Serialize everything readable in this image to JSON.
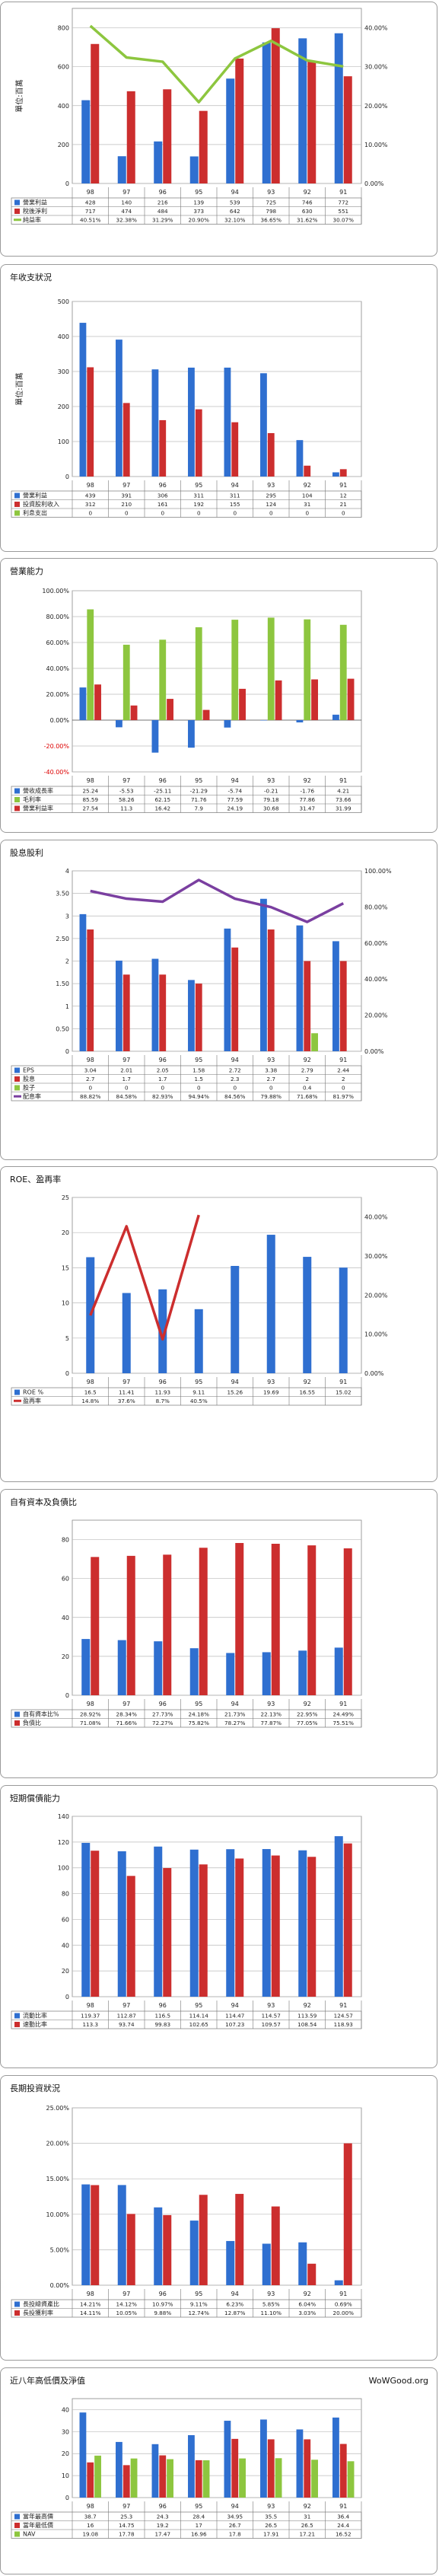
{
  "site": "WoWGood.org",
  "years": [
    "98",
    "97",
    "96",
    "95",
    "94",
    "93",
    "92",
    "91"
  ],
  "colors": {
    "blue": "#2f6fd0",
    "red": "#cc2e2e",
    "green": "#8dc63f",
    "purple": "#7a3fa0",
    "green_line": "#8dc63f"
  },
  "chart_data": [
    {
      "id": "profit",
      "type": "bar",
      "title": "",
      "ylabel": "單位:百萬",
      "ylim": [
        0,
        900
      ],
      "y2lim": [
        0,
        45
      ],
      "y2suffix": "%",
      "series": [
        {
          "name": "營業利益",
          "axis": "left",
          "values": [
            428,
            140,
            216,
            139,
            539,
            725,
            746,
            772
          ],
          "color": "blue"
        },
        {
          "name": "稅後淨利",
          "axis": "left",
          "values": [
            717,
            474,
            484,
            373,
            642,
            798,
            630,
            551
          ],
          "color": "red"
        },
        {
          "name": "純益率",
          "axis": "right",
          "kind": "line",
          "values": [
            40.51,
            32.38,
            31.29,
            20.9,
            32.1,
            36.65,
            31.62,
            30.07
          ],
          "color": "green_line",
          "display": [
            "40.51%",
            "32.38%",
            "31.29%",
            "20.90%",
            "32.10%",
            "36.65%",
            "31.62%",
            "30.07%"
          ]
        }
      ]
    },
    {
      "id": "annual",
      "type": "bar",
      "title": "年收支狀況",
      "ylabel": "單位:百萬",
      "ylim": [
        0,
        500
      ],
      "series": [
        {
          "name": "營業利益",
          "values": [
            439,
            391,
            306,
            311,
            311,
            295,
            104,
            12
          ],
          "color": "blue"
        },
        {
          "name": "投資股利收入",
          "values": [
            312,
            210,
            161,
            192,
            155,
            124,
            31,
            21
          ],
          "color": "red"
        },
        {
          "name": "利息支出",
          "values": [
            0,
            0,
            0,
            0,
            0,
            0,
            0,
            0
          ],
          "color": "green"
        }
      ]
    },
    {
      "id": "ability",
      "type": "bar",
      "title": "營業能力",
      "ylabel": "",
      "ylim": [
        -40,
        100
      ],
      "ysuffix": "%",
      "series": [
        {
          "name": "營收成長率",
          "values": [
            25.24,
            -5.53,
            -25.11,
            -21.29,
            -5.74,
            -0.21,
            -1.76,
            4.21
          ],
          "color": "blue"
        },
        {
          "name": "毛利率",
          "values": [
            85.59,
            58.26,
            62.15,
            71.76,
            77.59,
            79.18,
            77.86,
            73.66
          ],
          "color": "green"
        },
        {
          "name": "營業利益率",
          "values": [
            27.54,
            11.3,
            16.42,
            7.9,
            24.19,
            30.68,
            31.47,
            31.99
          ],
          "color": "red"
        }
      ]
    },
    {
      "id": "dividend",
      "type": "bar",
      "title": "股息股利",
      "ylabel": "",
      "ylim": [
        0,
        4
      ],
      "y2lim": [
        0,
        100
      ],
      "y2suffix": "%",
      "series": [
        {
          "name": "EPS",
          "axis": "left",
          "values": [
            3.04,
            2.01,
            2.05,
            1.58,
            2.72,
            3.38,
            2.79,
            2.44
          ],
          "color": "blue"
        },
        {
          "name": "股息",
          "axis": "left",
          "values": [
            2.7,
            1.7,
            1.7,
            1.5,
            2.3,
            2.7,
            2,
            2
          ],
          "color": "red"
        },
        {
          "name": "股子",
          "axis": "left",
          "values": [
            0,
            0,
            0,
            0,
            0,
            0,
            0.4,
            0
          ],
          "color": "green"
        },
        {
          "name": "配息率",
          "axis": "right",
          "kind": "line",
          "values": [
            88.82,
            84.58,
            82.93,
            94.94,
            84.56,
            79.88,
            71.68,
            81.97
          ],
          "color": "purple",
          "display": [
            "88.82%",
            "84.58%",
            "82.93%",
            "94.94%",
            "84.56%",
            "79.88%",
            "71.68%",
            "81.97%"
          ]
        }
      ]
    },
    {
      "id": "roe",
      "type": "bar",
      "title": "ROE、盈再率",
      "ylabel": "",
      "ylim": [
        0,
        25
      ],
      "y2lim": [
        0,
        45
      ],
      "y2suffix": "%",
      "series": [
        {
          "name": "ROE %",
          "axis": "left",
          "values": [
            16.5,
            11.41,
            11.93,
            9.11,
            15.26,
            19.69,
            16.55,
            15.02
          ],
          "color": "blue"
        },
        {
          "name": "盈再率",
          "axis": "right",
          "kind": "line",
          "values": [
            14.8,
            37.6,
            8.7,
            40.5,
            null,
            null,
            null,
            null
          ],
          "color": "red",
          "display": [
            "14.8%",
            "37.6%",
            "8.7%",
            "40.5%",
            "",
            "",
            "",
            ""
          ]
        }
      ]
    },
    {
      "id": "equity",
      "type": "bar",
      "title": "自有資本及負債比",
      "ylabel": "",
      "ylim": [
        0,
        90
      ],
      "series": [
        {
          "name": "自有資本比%",
          "values": [
            28.92,
            28.34,
            27.73,
            24.18,
            21.73,
            22.13,
            22.95,
            24.49
          ],
          "color": "blue",
          "display": [
            "28.92%",
            "28.34%",
            "27.73%",
            "24.18%",
            "21.73%",
            "22.13%",
            "22.95%",
            "24.49%"
          ]
        },
        {
          "name": "負債比",
          "values": [
            71.08,
            71.66,
            72.27,
            75.82,
            78.27,
            77.87,
            77.05,
            75.51
          ],
          "color": "red",
          "display": [
            "71.08%",
            "71.66%",
            "72.27%",
            "75.82%",
            "78.27%",
            "77.87%",
            "77.05%",
            "75.51%"
          ]
        }
      ]
    },
    {
      "id": "solvency",
      "type": "bar",
      "title": "短期償債能力",
      "ylabel": "",
      "ylim": [
        0,
        140
      ],
      "series": [
        {
          "name": "流動比率",
          "values": [
            119.37,
            112.87,
            116.5,
            114.14,
            114.47,
            114.57,
            113.59,
            124.57
          ],
          "color": "blue"
        },
        {
          "name": "速動比率",
          "values": [
            113.3,
            93.74,
            99.83,
            102.65,
            107.23,
            109.57,
            108.54,
            118.93
          ],
          "color": "red"
        }
      ]
    },
    {
      "id": "invest",
      "type": "bar",
      "title": "長期投資狀況",
      "ylabel": "",
      "ylim": [
        0,
        25
      ],
      "ysuffix": "%",
      "series": [
        {
          "name": "長投總資產比",
          "values": [
            14.21,
            14.12,
            10.97,
            9.11,
            6.23,
            5.85,
            6.04,
            0.69
          ],
          "color": "blue",
          "display": [
            "14.21%",
            "14.12%",
            "10.97%",
            "9.11%",
            "6.23%",
            "5.85%",
            "6.04%",
            "0.69%"
          ]
        },
        {
          "name": "長投獲利率",
          "values": [
            14.11,
            10.05,
            9.88,
            12.74,
            12.87,
            11.1,
            3.03,
            20
          ],
          "color": "red",
          "display": [
            "14.11%",
            "10.05%",
            "9.88%",
            "12.74%",
            "12.87%",
            "11.10%",
            "3.03%",
            "20.00%"
          ]
        }
      ]
    },
    {
      "id": "price",
      "type": "bar",
      "title": "近八年高低價及淨值",
      "ylabel": "",
      "ylim": [
        0,
        45
      ],
      "series": [
        {
          "name": "當年最高價",
          "values": [
            38.7,
            25.3,
            24.3,
            28.4,
            34.95,
            35.5,
            31,
            36.4
          ],
          "color": "blue"
        },
        {
          "name": "當年最低價",
          "values": [
            16,
            14.75,
            19.2,
            17,
            26.7,
            26.5,
            26.5,
            24.4
          ],
          "color": "red"
        },
        {
          "name": "NAV",
          "values": [
            19.08,
            17.78,
            17.47,
            16.96,
            17.8,
            17.91,
            17.21,
            16.52
          ],
          "color": "green"
        }
      ]
    }
  ]
}
